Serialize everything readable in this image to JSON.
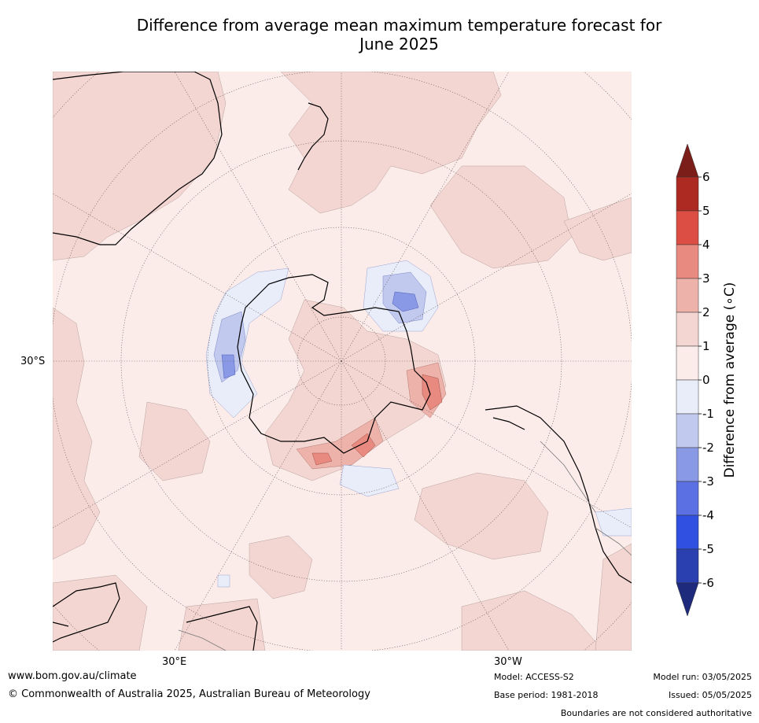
{
  "title": {
    "line1": "Difference from average mean maximum temperature forecast for",
    "line2": "June 2025"
  },
  "map": {
    "projection": "south polar stereographic",
    "lat_label": "30°S",
    "lon_labels": {
      "east": "30°E",
      "west": "30°W"
    },
    "continents": [
      "Antarctica",
      "Australia",
      "New Zealand",
      "South America",
      "Africa",
      "Madagascar"
    ]
  },
  "colorbar": {
    "label": "Difference from average (∘C)",
    "ticks": [
      "6",
      "5",
      "4",
      "3",
      "2",
      "1",
      "0",
      "-1",
      "-2",
      "-3",
      "-4",
      "-5",
      "-6"
    ],
    "bands": [
      {
        "range": "above 6",
        "color": "#7b1e1a"
      },
      {
        "range": "5 to 6",
        "color": "#ad2a22"
      },
      {
        "range": "4 to 5",
        "color": "#dc4e44"
      },
      {
        "range": "3 to 4",
        "color": "#e88a80"
      },
      {
        "range": "2 to 3",
        "color": "#edb2aa"
      },
      {
        "range": "1 to 2",
        "color": "#f3d5d1"
      },
      {
        "range": "0 to 1",
        "color": "#fbecea"
      },
      {
        "range": "-1 to 0",
        "color": "#e9ecf9"
      },
      {
        "range": "-2 to -1",
        "color": "#c2c9ef"
      },
      {
        "range": "-3 to -2",
        "color": "#8a99e6"
      },
      {
        "range": "-4 to -3",
        "color": "#5a70e3"
      },
      {
        "range": "-5 to -4",
        "color": "#3050e1"
      },
      {
        "range": "-6 to -5",
        "color": "#2a3fb0"
      },
      {
        "range": "below -6",
        "color": "#1e2a7c"
      }
    ]
  },
  "footer": {
    "website": "www.bom.gov.au/climate",
    "copyright": "© Commonwealth of Australia 2025, Australian Bureau of Meteorology",
    "model": "Model: ACCESS-S2",
    "base_period": "Base period: 1981-2018",
    "model_run": "Model run: 03/05/2025",
    "issued": "Issued: 05/05/2025",
    "disclaimer": "Boundaries are not considered authoritative"
  }
}
